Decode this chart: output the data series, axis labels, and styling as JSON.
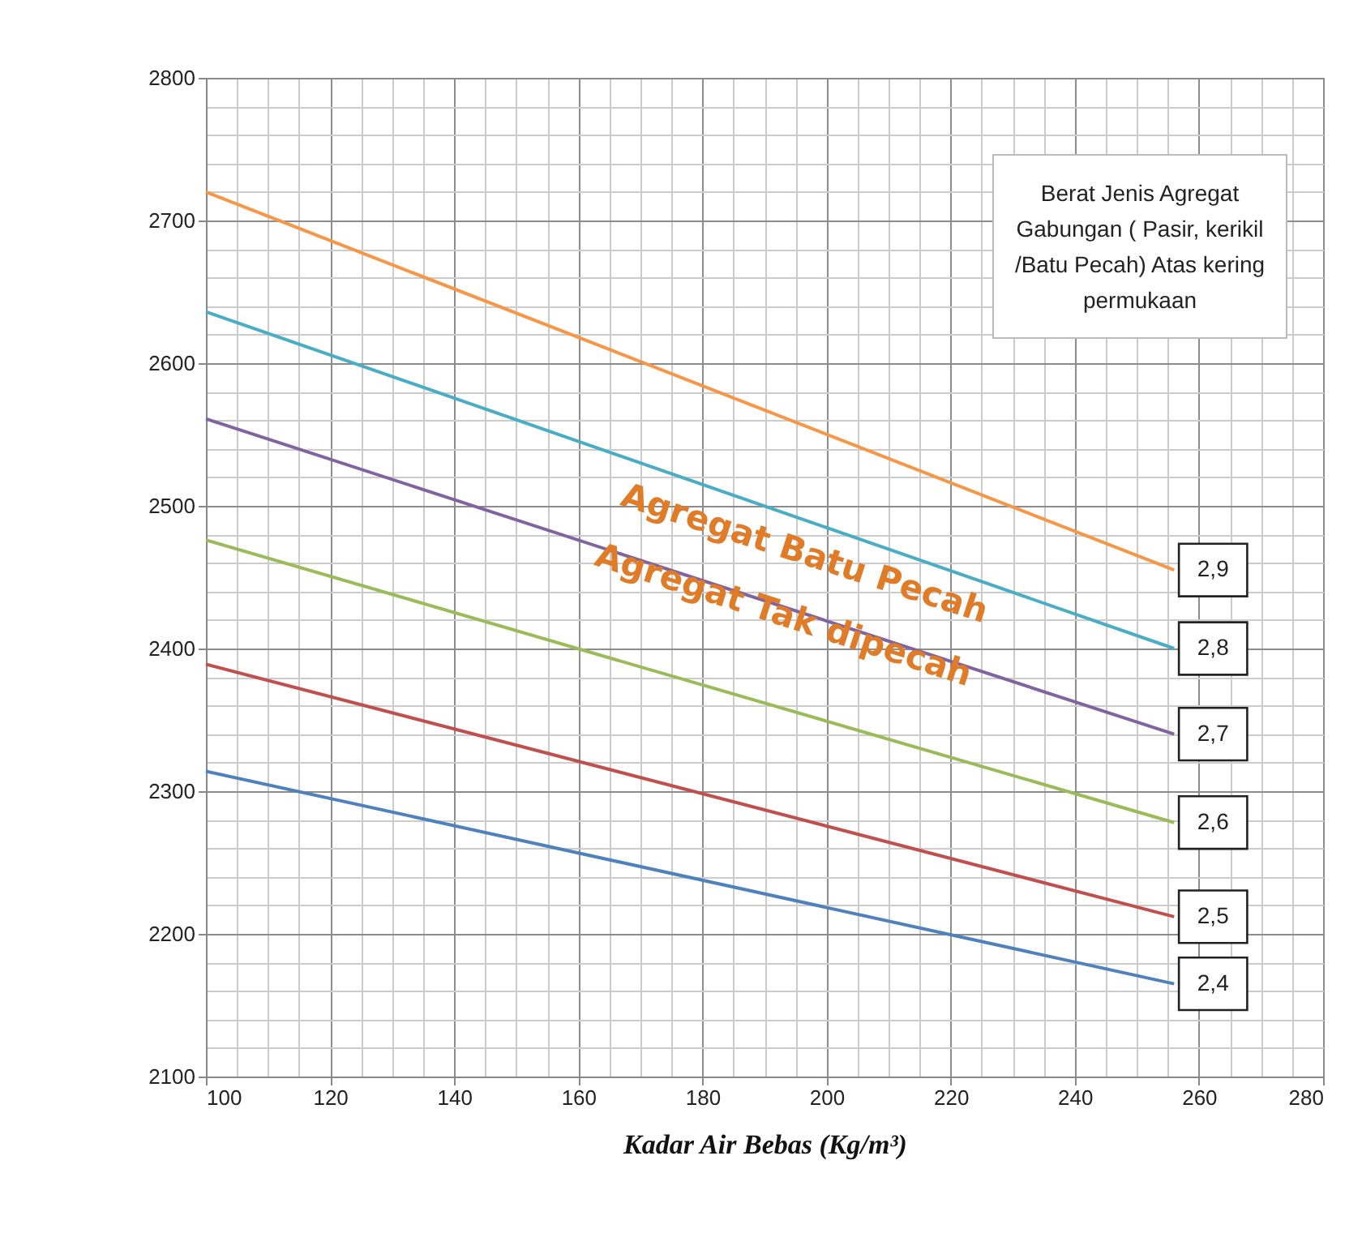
{
  "chart_data": {
    "type": "line",
    "xlabel": "Kadar Air Bebas (Kg/m³)",
    "xlim": [
      100,
      280
    ],
    "xticks": [
      100,
      120,
      140,
      160,
      180,
      200,
      220,
      240,
      260,
      280
    ],
    "ylim": [
      2100,
      2800
    ],
    "yticks": [
      2100,
      2200,
      2300,
      2400,
      2500,
      2600,
      2700,
      2800
    ],
    "grid": true,
    "marker": "none",
    "line_style": "solid",
    "annotations": [
      "Berat Jenis Agregat Gabungan ( Pasir, kerikil /Batu Pecah) Atas kering permukaan",
      "Agregat Batu Pecah",
      "Agregat Tak dipecah"
    ],
    "x": [
      100,
      256
    ],
    "series": [
      {
        "name": "2,9",
        "color": "#f79646",
        "values": [
          2720,
          2455
        ]
      },
      {
        "name": "2,8",
        "color": "#4bacc6",
        "values": [
          2636,
          2400
        ]
      },
      {
        "name": "2,7",
        "color": "#8064a2",
        "values": [
          2561,
          2340
        ]
      },
      {
        "name": "2,6",
        "color": "#9bbb59",
        "values": [
          2476,
          2278
        ]
      },
      {
        "name": "2,5",
        "color": "#c0504d",
        "values": [
          2389,
          2212
        ]
      },
      {
        "name": "2,4",
        "color": "#4f81bd",
        "values": [
          2314,
          2165
        ]
      }
    ]
  }
}
